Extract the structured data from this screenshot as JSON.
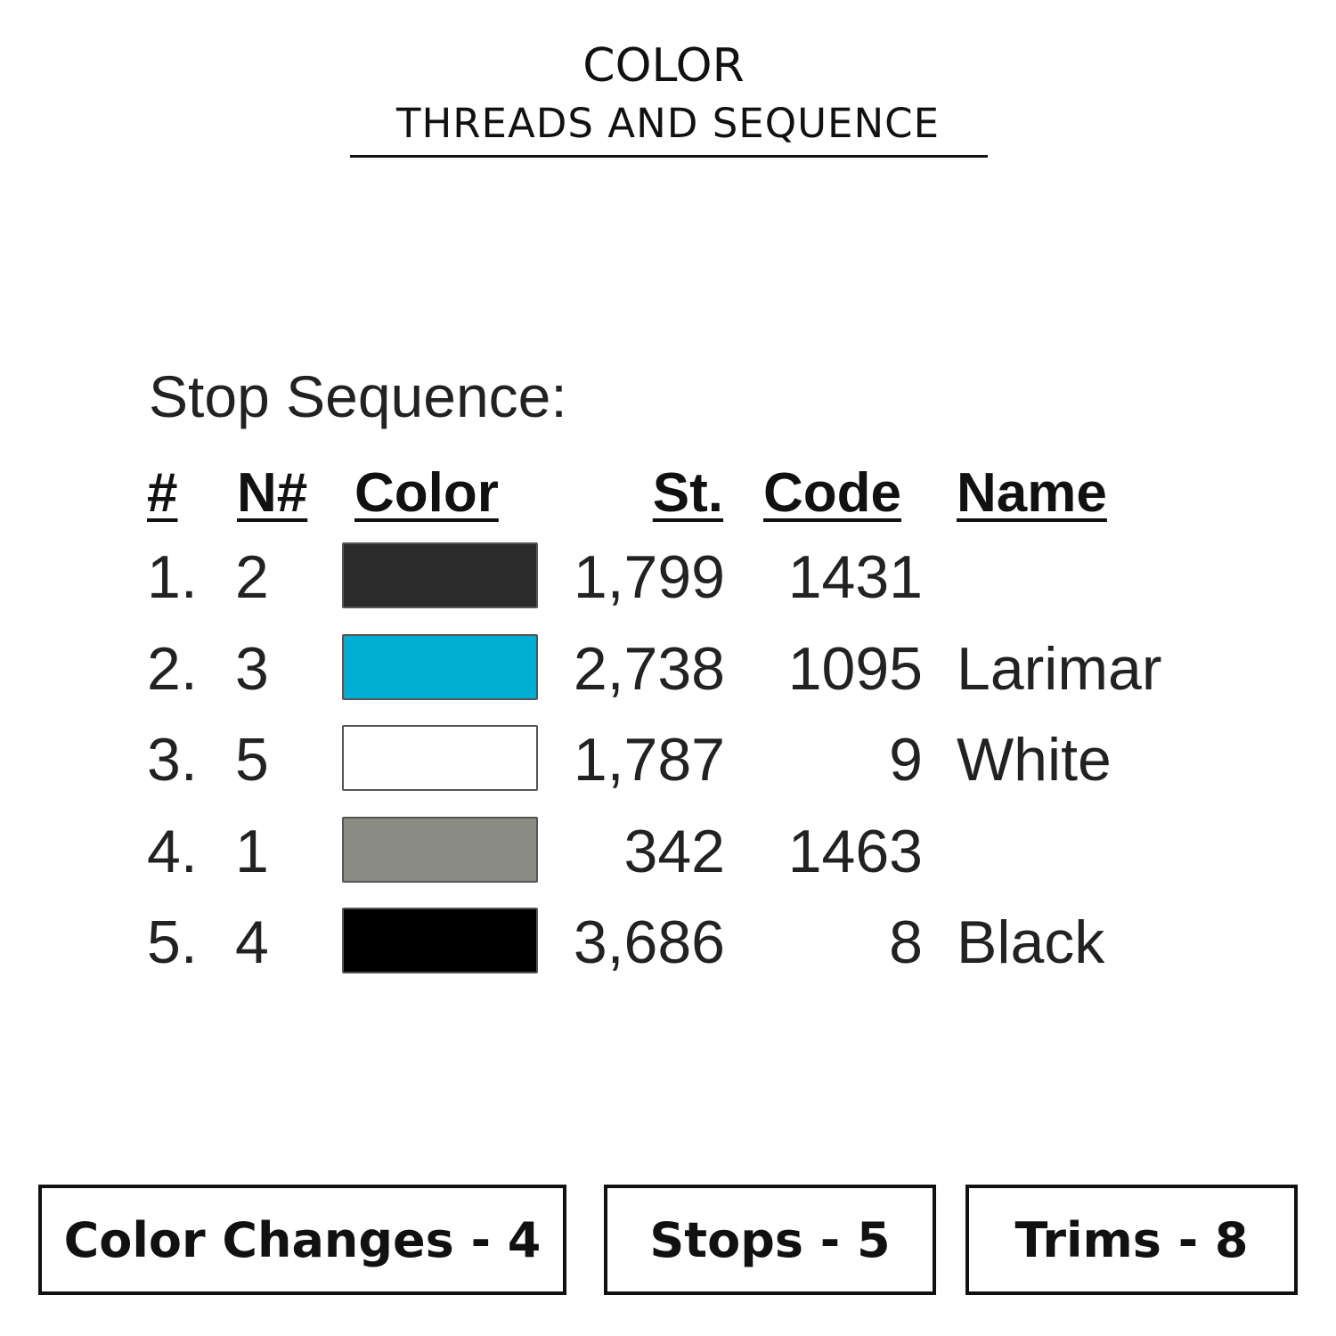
{
  "header": {
    "title": "COLOR",
    "subtitle": "THREADS AND SEQUENCE"
  },
  "sequence": {
    "heading": "Stop Sequence:",
    "columns": [
      "#",
      "N#",
      "Color",
      "St.",
      "Code",
      "Name"
    ],
    "rows": [
      {
        "num": "1.",
        "needle": "2",
        "color": "#2b2b2b",
        "stitches": "1,799",
        "code": "1431",
        "name": ""
      },
      {
        "num": "2.",
        "needle": "3",
        "color": "#00aed4",
        "stitches": "2,738",
        "code": "1095",
        "name": "Larimar"
      },
      {
        "num": "3.",
        "needle": "5",
        "color": "#ffffff",
        "stitches": "1,787",
        "code": "9",
        "name": "White"
      },
      {
        "num": "4.",
        "needle": "1",
        "color": "#8a8c84",
        "stitches": "342",
        "code": "1463",
        "name": ""
      },
      {
        "num": "5.",
        "needle": "4",
        "color": "#000000",
        "stitches": "3,686",
        "code": "8",
        "name": "Black"
      }
    ]
  },
  "summary": {
    "color_changes": "Color Changes - 4",
    "stops": "Stops - 5",
    "trims": "Trims - 8"
  }
}
